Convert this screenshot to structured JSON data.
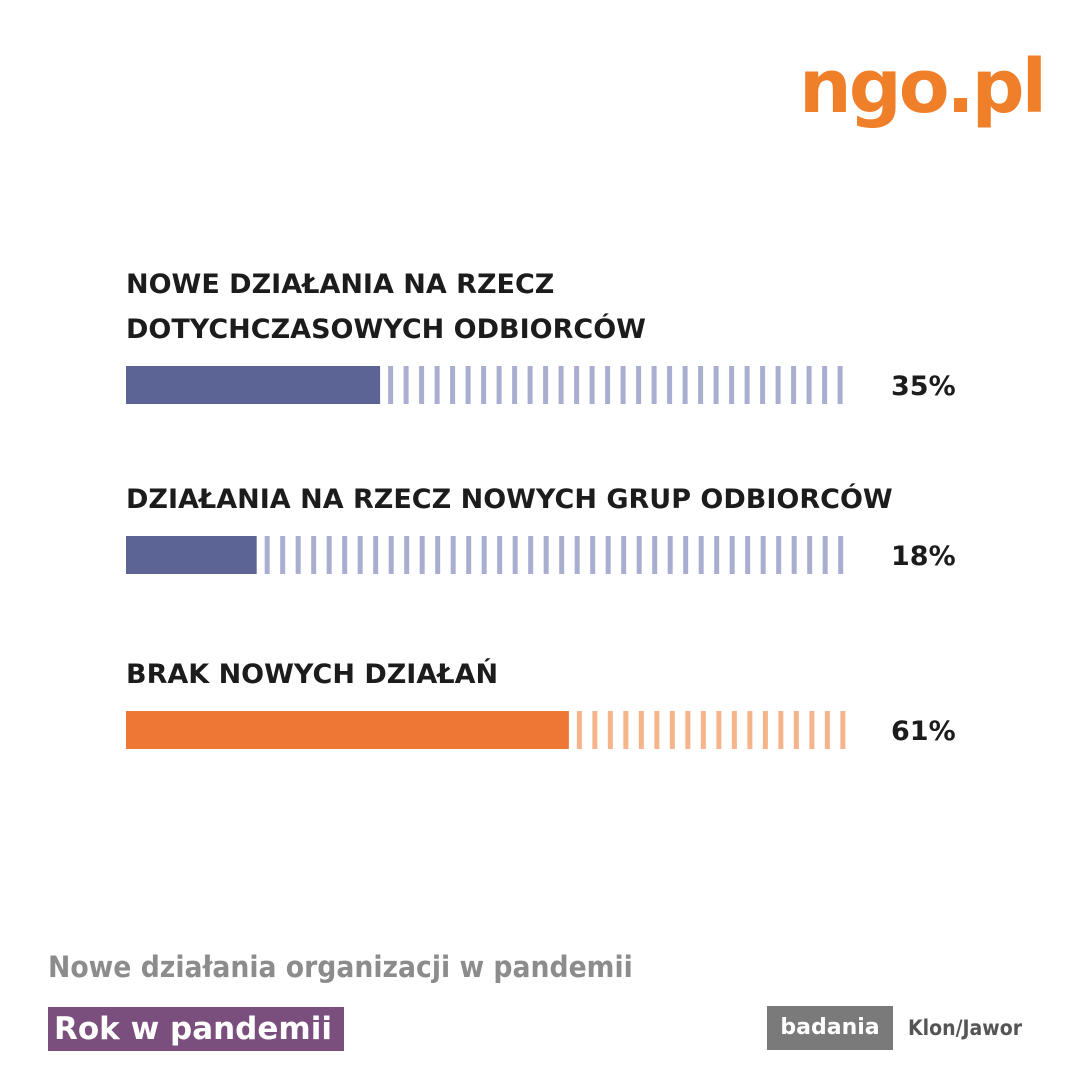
{
  "logo": "ngo.pl",
  "chart_data": {
    "type": "bar",
    "orientation": "horizontal",
    "categories": [
      [
        "NOWE DZIAŁANIA NA RZECZ",
        "DOTYCHCZASOWYCH ODBIORCÓW"
      ],
      [
        "DZIAŁANIA NA RZECZ NOWYCH GRUP ODBIORCÓW"
      ],
      [
        "BRAK NOWYCH DZIAŁAŃ"
      ]
    ],
    "values": [
      35,
      18,
      61
    ],
    "value_labels": [
      "35%",
      "18%",
      "61%"
    ],
    "colors": [
      "#5c6395",
      "#5c6395",
      "#ef7736"
    ],
    "remainder_colors": [
      "#a9aed0",
      "#a9aed0",
      "#f6b48a"
    ],
    "xlim": [
      0,
      100
    ]
  },
  "footer": {
    "title": "Nowe działania organizacji w pandemii",
    "series": "Rok w pandemii",
    "badge": "badania",
    "publisher": "Klon/Jawor"
  }
}
